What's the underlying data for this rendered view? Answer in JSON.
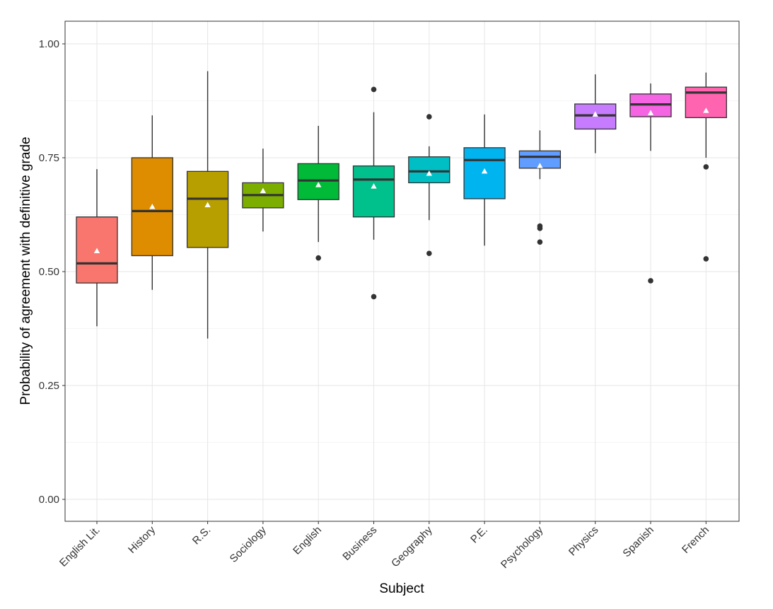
{
  "chart_data": {
    "type": "box",
    "xlabel": "Subject",
    "ylabel": "Probability of agreement with definitive grade",
    "ylim": [
      -0.05,
      1.05
    ],
    "yticks": [
      "0.00",
      "0.25",
      "0.50",
      "0.75",
      "1.00"
    ],
    "ytick_values": [
      0,
      0.25,
      0.5,
      0.75,
      1.0
    ],
    "grid": true,
    "mean_marker": "white triangle",
    "categories": [
      "English Lit.",
      "History",
      "R.S.",
      "Sociology",
      "English",
      "Business",
      "Geography",
      "P.E.",
      "Psychology",
      "Physics",
      "Spanish",
      "French"
    ],
    "colors": [
      "#F8766D",
      "#DE8C00",
      "#B79F00",
      "#7CAE00",
      "#00BA38",
      "#00C08B",
      "#00BFC4",
      "#00B4F0",
      "#619CFF",
      "#C77CFF",
      "#F564E3",
      "#FF64B0"
    ],
    "boxes": [
      {
        "whisker_low": 0.38,
        "q1": 0.475,
        "median": 0.518,
        "q3": 0.62,
        "whisker_high": 0.725,
        "mean": 0.545,
        "outliers": []
      },
      {
        "whisker_low": 0.46,
        "q1": 0.535,
        "median": 0.633,
        "q3": 0.75,
        "whisker_high": 0.843,
        "mean": 0.642,
        "outliers": []
      },
      {
        "whisker_low": 0.353,
        "q1": 0.553,
        "median": 0.66,
        "q3": 0.72,
        "whisker_high": 0.94,
        "mean": 0.646,
        "outliers": []
      },
      {
        "whisker_low": 0.588,
        "q1": 0.64,
        "median": 0.668,
        "q3": 0.695,
        "whisker_high": 0.77,
        "mean": 0.677,
        "outliers": []
      },
      {
        "whisker_low": 0.565,
        "q1": 0.658,
        "median": 0.7,
        "q3": 0.737,
        "whisker_high": 0.82,
        "mean": 0.69,
        "outliers": [
          0.53
        ]
      },
      {
        "whisker_low": 0.57,
        "q1": 0.62,
        "median": 0.702,
        "q3": 0.732,
        "whisker_high": 0.85,
        "mean": 0.687,
        "outliers": [
          0.445,
          0.9
        ]
      },
      {
        "whisker_low": 0.613,
        "q1": 0.695,
        "median": 0.72,
        "q3": 0.752,
        "whisker_high": 0.775,
        "mean": 0.715,
        "outliers": [
          0.54,
          0.84
        ]
      },
      {
        "whisker_low": 0.557,
        "q1": 0.66,
        "median": 0.745,
        "q3": 0.772,
        "whisker_high": 0.845,
        "mean": 0.72,
        "outliers": []
      },
      {
        "whisker_low": 0.703,
        "q1": 0.727,
        "median": 0.752,
        "q3": 0.765,
        "whisker_high": 0.81,
        "mean": 0.732,
        "outliers": [
          0.565,
          0.595,
          0.6
        ]
      },
      {
        "whisker_low": 0.76,
        "q1": 0.813,
        "median": 0.843,
        "q3": 0.868,
        "whisker_high": 0.933,
        "mean": 0.845,
        "outliers": []
      },
      {
        "whisker_low": 0.765,
        "q1": 0.84,
        "median": 0.867,
        "q3": 0.89,
        "whisker_high": 0.913,
        "mean": 0.848,
        "outliers": [
          0.48
        ]
      },
      {
        "whisker_low": 0.75,
        "q1": 0.838,
        "median": 0.893,
        "q3": 0.905,
        "whisker_high": 0.937,
        "mean": 0.853,
        "outliers": [
          0.528,
          0.73
        ]
      }
    ]
  }
}
